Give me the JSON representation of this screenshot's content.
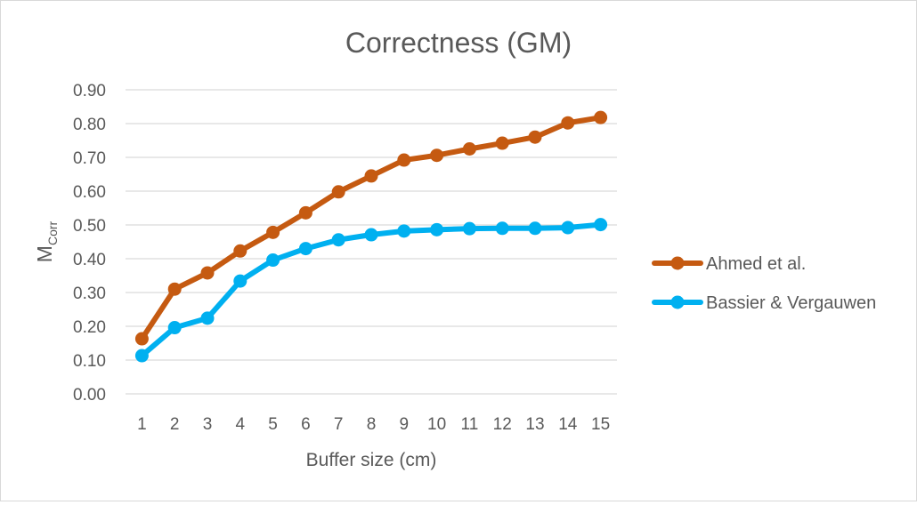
{
  "chart_data": {
    "type": "line",
    "title": "Correctness (GM)",
    "xlabel": "Buffer size (cm)",
    "ylabel": {
      "main": "M",
      "sub": "Corr"
    },
    "ylim": [
      0,
      0.9
    ],
    "yticks": [
      "0.00",
      "0.10",
      "0.20",
      "0.30",
      "0.40",
      "0.50",
      "0.60",
      "0.70",
      "0.80",
      "0.90"
    ],
    "grid": true,
    "legend_position": "right",
    "categories": [
      "1",
      "2",
      "3",
      "4",
      "5",
      "6",
      "7",
      "8",
      "9",
      "10",
      "11",
      "12",
      "13",
      "14",
      "15"
    ],
    "series": [
      {
        "name": "Ahmed et al.",
        "color": "#C55A11",
        "values": [
          0.163,
          0.31,
          0.358,
          0.423,
          0.478,
          0.536,
          0.598,
          0.645,
          0.692,
          0.706,
          0.725,
          0.742,
          0.76,
          0.802,
          0.818
        ]
      },
      {
        "name": "Bassier & Vergauwen",
        "color": "#00B0F0",
        "values": [
          0.113,
          0.196,
          0.224,
          0.334,
          0.396,
          0.43,
          0.456,
          0.471,
          0.482,
          0.486,
          0.489,
          0.49,
          0.49,
          0.492,
          0.501
        ]
      }
    ]
  }
}
